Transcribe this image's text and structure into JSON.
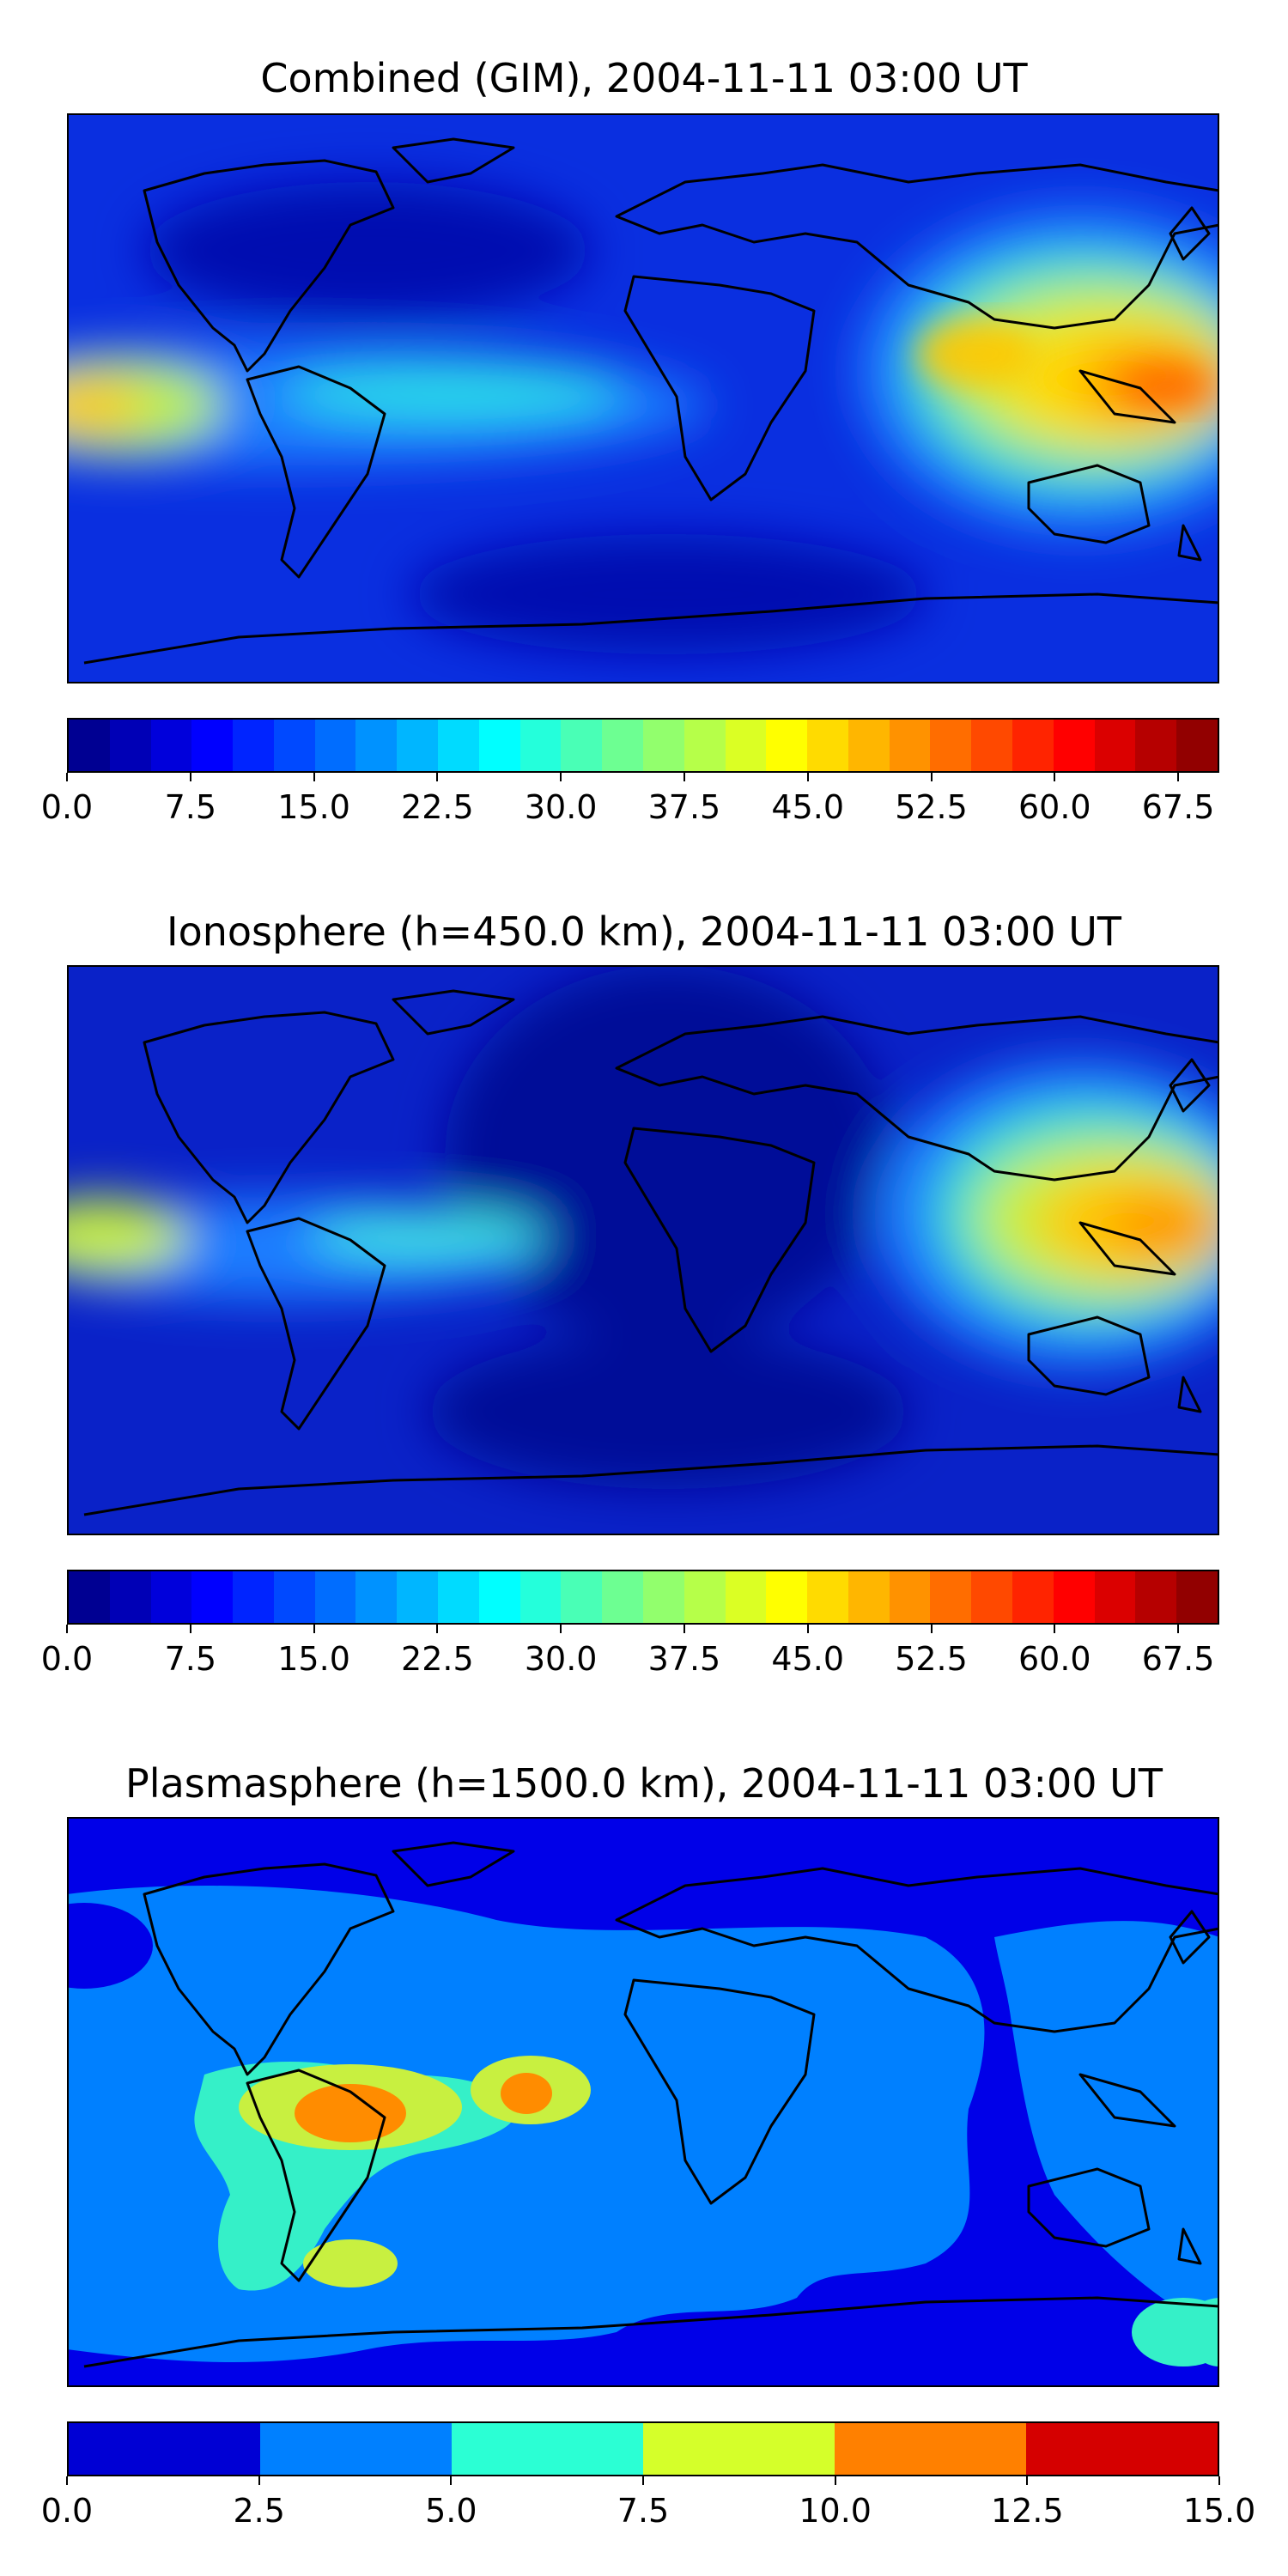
{
  "panels": [
    {
      "title": "Combined (GIM), 2004-11-11 03:00 UT",
      "colorbar": {
        "min": 0.0,
        "max": 70.0,
        "levels": 28,
        "ticks": [
          "0.0",
          "7.5",
          "15.0",
          "22.5",
          "30.0",
          "37.5",
          "45.0",
          "52.5",
          "60.0",
          "67.5"
        ],
        "tick_values": [
          0,
          7.5,
          15,
          22.5,
          30,
          37.5,
          45,
          52.5,
          60,
          67.5
        ]
      }
    },
    {
      "title": "Ionosphere  (h=450.0 km), 2004-11-11 03:00 UT",
      "colorbar": {
        "min": 0.0,
        "max": 70.0,
        "levels": 28,
        "ticks": [
          "0.0",
          "7.5",
          "15.0",
          "22.5",
          "30.0",
          "37.5",
          "45.0",
          "52.5",
          "60.0",
          "67.5"
        ],
        "tick_values": [
          0,
          7.5,
          15,
          22.5,
          30,
          37.5,
          45,
          52.5,
          60,
          67.5
        ]
      }
    },
    {
      "title": "Plasmasphere (h=1500.0 km), 2004-11-11 03:00 UT",
      "colorbar": {
        "min": 0.0,
        "max": 15.0,
        "levels": 6,
        "ticks": [
          "0.0",
          "2.5",
          "5.0",
          "7.5",
          "10.0",
          "12.5",
          "15.0"
        ],
        "tick_values": [
          0,
          2.5,
          5,
          7.5,
          10,
          12.5,
          15
        ]
      }
    }
  ],
  "colormap": "jet"
}
